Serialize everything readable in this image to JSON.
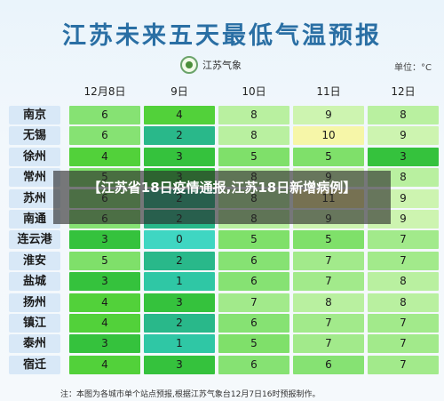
{
  "header": {
    "title": "江苏未来五天最低气温预报",
    "logo_text": "江苏气象",
    "unit": "单位：°C"
  },
  "overlay": {
    "text": "【江苏省18日疫情通报,江苏18日新增病例】"
  },
  "footer": {
    "note": "注：本图为各城市单个站点预报,根据江苏气象台12月7日16时预报制作。"
  },
  "colors": {
    "0": "#3fd6c2",
    "1": "#2fc7a5",
    "2": "#29b88a",
    "3": "#35c23d",
    "4": "#52d13a",
    "5": "#7fe06a",
    "6": "#86e273",
    "7": "#a2ea8b",
    "8": "#b9f0a0",
    "9": "#cdf4b0",
    "10": "#f6f6a8",
    "11": "#f3e895"
  },
  "chart_data": {
    "type": "table",
    "title": "江苏未来五天最低气温预报",
    "unit": "°C",
    "columns": [
      "12月8日",
      "9日",
      "10日",
      "11日",
      "12日"
    ],
    "rows": [
      {
        "city": "南京",
        "values": [
          6,
          4,
          8,
          9,
          8
        ]
      },
      {
        "city": "无锡",
        "values": [
          6,
          2,
          8,
          10,
          9
        ]
      },
      {
        "city": "徐州",
        "values": [
          4,
          3,
          5,
          5,
          3
        ]
      },
      {
        "city": "常州",
        "values": [
          5,
          3,
          8,
          9,
          8
        ]
      },
      {
        "city": "苏州",
        "values": [
          6,
          2,
          8,
          11,
          9
        ]
      },
      {
        "city": "南通",
        "values": [
          6,
          2,
          8,
          9,
          9
        ]
      },
      {
        "city": "连云港",
        "values": [
          3,
          0,
          5,
          5,
          7
        ]
      },
      {
        "city": "淮安",
        "values": [
          5,
          2,
          6,
          7,
          7
        ]
      },
      {
        "city": "盐城",
        "values": [
          3,
          1,
          6,
          7,
          8
        ]
      },
      {
        "city": "扬州",
        "values": [
          4,
          3,
          7,
          8,
          8
        ]
      },
      {
        "city": "镇江",
        "values": [
          4,
          2,
          6,
          7,
          7
        ]
      },
      {
        "city": "泰州",
        "values": [
          3,
          1,
          5,
          7,
          7
        ]
      },
      {
        "city": "宿迁",
        "values": [
          4,
          3,
          6,
          6,
          7
        ]
      }
    ]
  }
}
